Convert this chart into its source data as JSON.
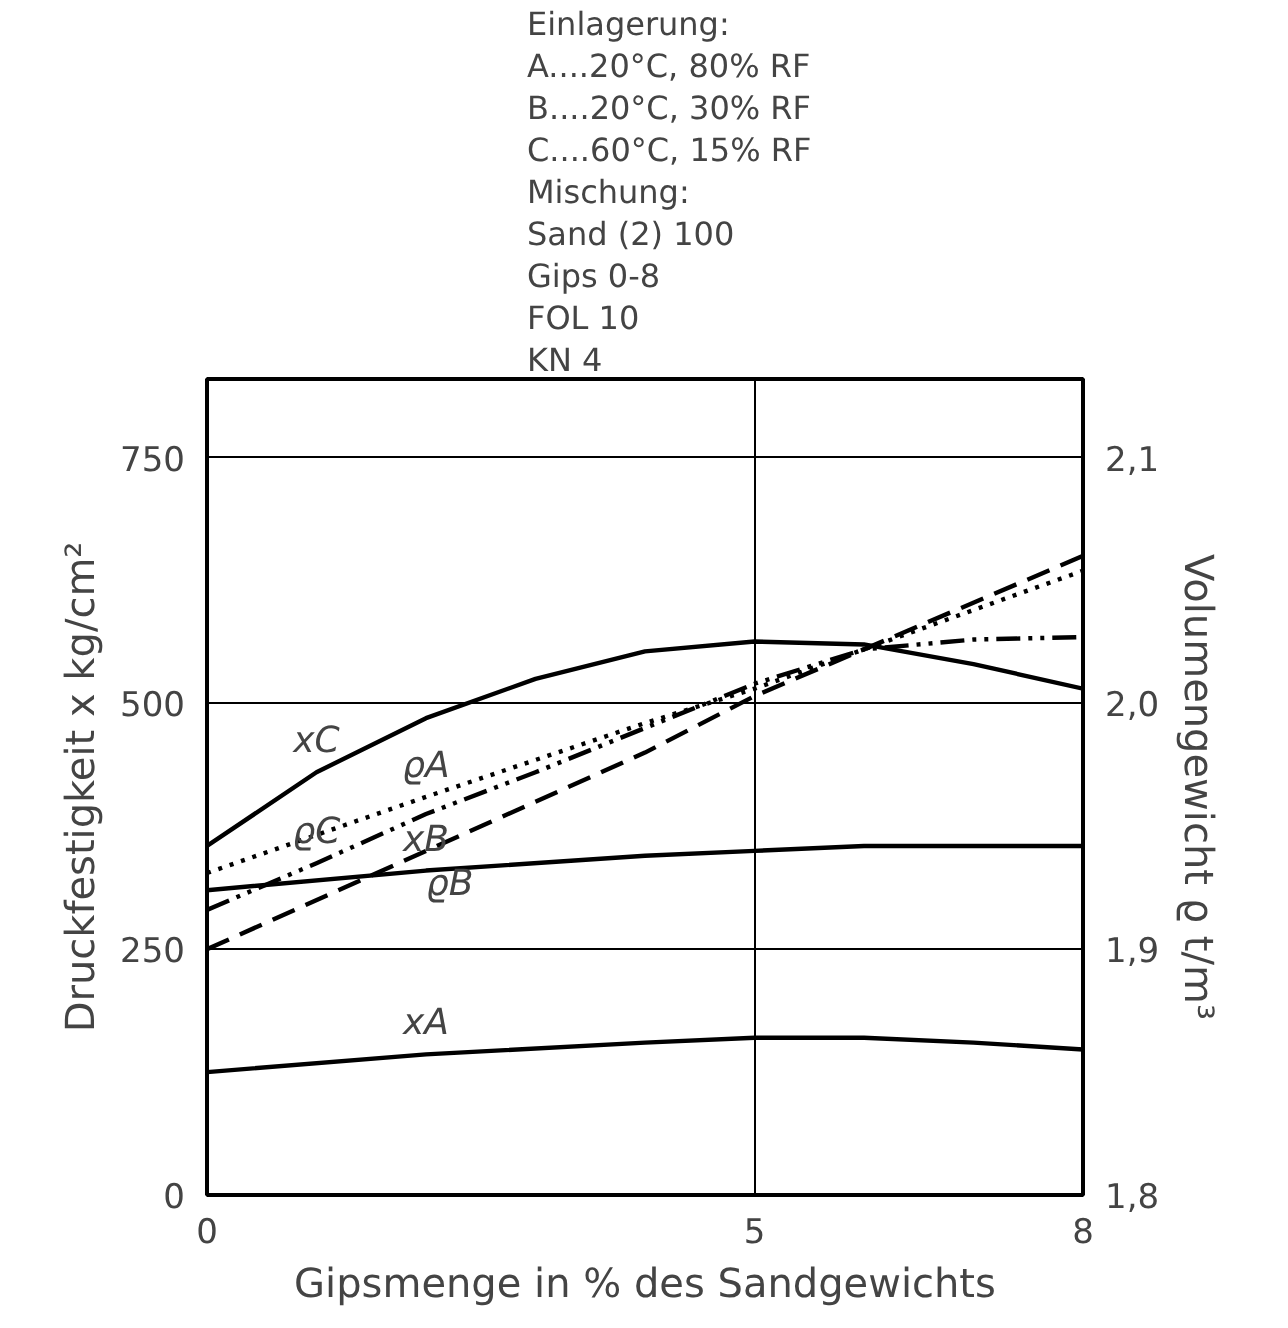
{
  "chart_data": {
    "type": "line",
    "xlabel": "Gipsmenge in % des Sandgewichts",
    "ylabel": "Druckfestigkeit x kg/cm²",
    "y2label": "Volumengewicht ϱ t/m³",
    "xlim": [
      0,
      8
    ],
    "xticks": [
      0,
      5,
      8
    ],
    "ylim": [
      0,
      830
    ],
    "yticks": [
      0,
      250,
      500,
      750
    ],
    "y2lim": [
      1.8,
      2.132
    ],
    "y2ticks": [
      {
        "value": 1.8,
        "label": "1,8"
      },
      {
        "value": 1.9,
        "label": "1,9"
      },
      {
        "value": 2.0,
        "label": "2,0"
      },
      {
        "value": 2.1,
        "label": "2,1"
      }
    ],
    "grid": true,
    "marker": "none",
    "series": [
      {
        "name": "xC",
        "color": "#000000",
        "line_style": "solid",
        "x": [
          0,
          1,
          2,
          3,
          4,
          5,
          6,
          7,
          8
        ],
        "values": [
          355,
          430,
          485,
          525,
          553,
          563,
          560,
          540,
          515
        ]
      },
      {
        "name": "xB",
        "color": "#000000",
        "line_style": "solid",
        "x": [
          0,
          2,
          4,
          5,
          6,
          8
        ],
        "values": [
          310,
          330,
          345,
          350,
          355,
          355
        ]
      },
      {
        "name": "xA",
        "color": "#000000",
        "line_style": "solid",
        "x": [
          0,
          2,
          4,
          5,
          6,
          7,
          8
        ],
        "values": [
          125,
          143,
          155,
          160,
          160,
          155,
          148
        ]
      },
      {
        "name": "ϱA",
        "color": "#000000",
        "line_style": "dotted",
        "axis": "y2",
        "x": [
          0,
          2,
          4,
          5,
          6,
          8
        ],
        "values": [
          1.931,
          1.962,
          1.992,
          2.006,
          2.022,
          2.054
        ]
      },
      {
        "name": "ϱB",
        "color": "#000000",
        "line_style": "dashed",
        "axis": "y2",
        "x": [
          0,
          2,
          4,
          5,
          6,
          8
        ],
        "values": [
          1.9,
          1.94,
          1.98,
          2.003,
          2.022,
          2.06
        ]
      },
      {
        "name": "ϱC",
        "color": "#000000",
        "line_style": "dashdot",
        "axis": "y2",
        "x": [
          0,
          1,
          2,
          3,
          4,
          5,
          6,
          7,
          8
        ],
        "values": [
          1.916,
          1.935,
          1.955,
          1.972,
          1.99,
          2.008,
          2.022,
          2.026,
          2.027
        ]
      }
    ],
    "annotations": [
      "Einlagerung:",
      "A....20°C, 80% RF",
      "B....20°C, 30% RF",
      "C....60°C, 15% RF",
      "Mischung:",
      "Sand (2) 100",
      "Gips      0-8",
      "FOL        10",
      "KN          4"
    ]
  }
}
